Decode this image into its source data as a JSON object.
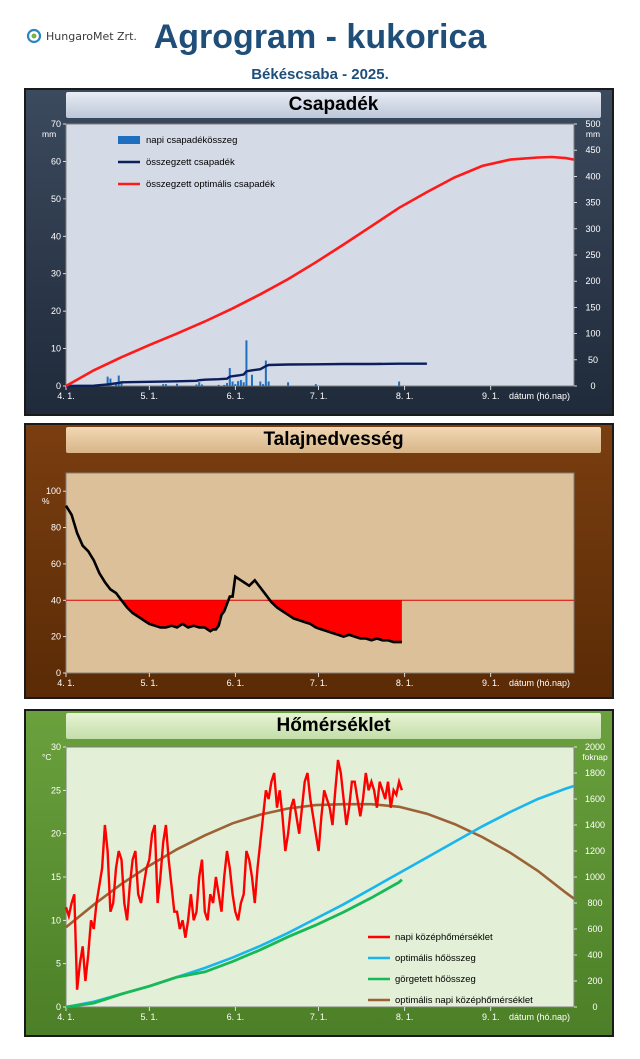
{
  "header": {
    "logo_text": "HungaroMet Zrt.",
    "title": "Agrogram - kukorica",
    "subtitle": "Békéscsaba - 2025."
  },
  "x_axis": {
    "tick_labels": [
      "4. 1.",
      "5. 1.",
      "6. 1.",
      "7. 1.",
      "8. 1.",
      "9. 1."
    ],
    "label": "dátum (hó.nap)"
  },
  "colors": {
    "precip_panel": "#2b3648",
    "soil_panel": "#6b3409",
    "temp_panel": "#5b8f30"
  },
  "chart_data": [
    {
      "type": "line",
      "title": "Csapadék",
      "xlabel": "dátum (hó.nap)",
      "x_tick_labels": [
        "4. 1.",
        "5. 1.",
        "6. 1.",
        "7. 1.",
        "8. 1.",
        "9. 1."
      ],
      "x_range_days": [
        0,
        183
      ],
      "y_left": {
        "unit": "mm",
        "lim": [
          0,
          70
        ],
        "ticks": [
          0,
          10,
          20,
          30,
          40,
          50,
          60,
          70
        ]
      },
      "y_right": {
        "unit": "mm",
        "lim": [
          0,
          500
        ],
        "ticks": [
          0,
          50,
          100,
          150,
          200,
          250,
          300,
          350,
          400,
          450,
          500
        ]
      },
      "legend": [
        "napi csapadékösszeg",
        "összegzett csapadék",
        "összegzett optimális csapadék"
      ],
      "series": [
        {
          "name": "napi csapadékösszeg",
          "axis": "left",
          "kind": "bar",
          "x": [
            7,
            9,
            15,
            16,
            18,
            19,
            20,
            35,
            36,
            40,
            47,
            48,
            49,
            55,
            57,
            58,
            59,
            60,
            61,
            62,
            63,
            64,
            65,
            67,
            70,
            71,
            72,
            73,
            80,
            90,
            120
          ],
          "values": [
            0.3,
            0.2,
            2.5,
            2.0,
            0.5,
            2.8,
            1.0,
            0.5,
            0.5,
            0.6,
            0.4,
            1.0,
            0.4,
            0.3,
            0.3,
            0.8,
            4.8,
            1.2,
            0.5,
            1.3,
            1.6,
            1.0,
            12.2,
            3.0,
            1.2,
            0.5,
            6.8,
            1.2,
            1.0,
            0.5,
            1.2
          ]
        },
        {
          "name": "összegzett csapadék",
          "axis": "right",
          "x": [
            0,
            10,
            15,
            19,
            20,
            30,
            40,
            47,
            48,
            50,
            55,
            58,
            59,
            62,
            64,
            65,
            67,
            70,
            72,
            73,
            80,
            90,
            100,
            110,
            120,
            130
          ],
          "values": [
            0,
            0.5,
            3,
            6,
            7,
            8,
            9,
            10,
            11,
            12,
            13,
            14,
            18,
            20,
            22,
            28,
            30,
            32,
            38,
            40,
            41,
            41.5,
            42,
            42,
            42.5,
            42.5
          ]
        },
        {
          "name": "összegzett optimális csapadék",
          "axis": "right",
          "x": [
            0,
            10,
            20,
            30,
            40,
            50,
            60,
            70,
            80,
            90,
            100,
            110,
            120,
            130,
            140,
            150,
            160,
            170,
            175,
            180,
            183
          ],
          "values": [
            0,
            30,
            55,
            78,
            100,
            123,
            148,
            175,
            204,
            236,
            270,
            305,
            340,
            370,
            398,
            420,
            432,
            436,
            437,
            435,
            432
          ]
        }
      ]
    },
    {
      "type": "area",
      "title": "Talajnedvesség",
      "xlabel": "dátum (hó.nap)",
      "x_tick_labels": [
        "4. 1.",
        "5. 1.",
        "6. 1.",
        "7. 1.",
        "8. 1.",
        "9. 1."
      ],
      "x_range_days": [
        0,
        183
      ],
      "y_left": {
        "unit": "%",
        "lim": [
          0,
          110
        ],
        "ticks": [
          0,
          20,
          40,
          60,
          80,
          100
        ]
      },
      "threshold": 40,
      "series": [
        {
          "name": "",
          "x": [
            0,
            2,
            4,
            6,
            8,
            10,
            12,
            14,
            16,
            18,
            20,
            22,
            24,
            26,
            28,
            30,
            32,
            34,
            36,
            38,
            40,
            42,
            44,
            46,
            48,
            50,
            51,
            52,
            53,
            54,
            55,
            56,
            57,
            58,
            59,
            60,
            61,
            62,
            63,
            64,
            65,
            66,
            68,
            70,
            72,
            74,
            76,
            78,
            80,
            82,
            84,
            86,
            88,
            90,
            92,
            94,
            96,
            98,
            100,
            102,
            104,
            106,
            108,
            110,
            112,
            114,
            116,
            118,
            120,
            121
          ],
          "values": [
            92,
            87,
            77,
            70,
            67,
            62,
            55,
            50,
            46,
            44,
            40,
            36,
            33,
            31,
            29,
            27,
            26,
            25,
            25,
            26,
            25,
            27,
            25,
            26,
            25,
            25,
            24,
            23,
            24,
            24,
            26,
            32,
            34,
            38,
            42,
            42,
            53,
            52,
            51,
            50,
            49,
            48,
            51,
            47,
            43,
            39,
            36,
            34,
            32,
            30,
            29,
            28,
            27,
            25,
            24,
            23,
            22,
            21,
            20,
            21,
            20,
            19,
            19,
            18,
            19,
            18,
            18,
            17,
            17,
            17
          ]
        }
      ]
    },
    {
      "type": "line",
      "title": "Hőmérséklet",
      "xlabel": "dátum (hó.nap)",
      "x_tick_labels": [
        "4. 1.",
        "5. 1.",
        "6. 1.",
        "7. 1.",
        "8. 1.",
        "9. 1."
      ],
      "x_range_days": [
        0,
        183
      ],
      "y_left": {
        "unit": "°C",
        "lim": [
          0,
          30
        ],
        "ticks": [
          0,
          5,
          10,
          15,
          20,
          25,
          30
        ]
      },
      "y_right": {
        "unit": "foknap",
        "lim": [
          0,
          2000
        ],
        "ticks": [
          0,
          200,
          400,
          600,
          800,
          1000,
          1200,
          1400,
          1600,
          1800,
          2000
        ]
      },
      "legend": [
        "napi középhőmérséklet",
        "optimális hőösszeg",
        "görgetett hőösszeg",
        "optimális napi középhőmérséklet"
      ],
      "series": [
        {
          "name": "napi középhőmérséklet",
          "axis": "left",
          "x": [
            0,
            1,
            2,
            3,
            4,
            5,
            6,
            7,
            8,
            9,
            10,
            11,
            12,
            13,
            14,
            15,
            16,
            17,
            18,
            19,
            20,
            21,
            22,
            23,
            24,
            25,
            26,
            27,
            28,
            29,
            30,
            31,
            32,
            33,
            34,
            35,
            36,
            37,
            38,
            39,
            40,
            41,
            42,
            43,
            44,
            45,
            46,
            47,
            48,
            49,
            50,
            51,
            52,
            53,
            54,
            55,
            56,
            57,
            58,
            59,
            60,
            61,
            62,
            63,
            64,
            65,
            66,
            67,
            68,
            69,
            70,
            71,
            72,
            73,
            74,
            75,
            76,
            77,
            78,
            79,
            80,
            81,
            82,
            83,
            84,
            85,
            86,
            87,
            88,
            89,
            90,
            91,
            92,
            93,
            94,
            95,
            96,
            97,
            98,
            99,
            100,
            101,
            102,
            103,
            104,
            105,
            106,
            107,
            108,
            109,
            110,
            111,
            112,
            113,
            114,
            115,
            116,
            117,
            118,
            119,
            120,
            121
          ],
          "values": [
            11.5,
            10.5,
            12,
            13,
            2,
            5,
            7,
            3,
            6,
            10,
            9,
            12,
            14,
            16,
            21,
            18,
            11,
            12,
            16,
            18,
            17,
            12,
            10,
            14,
            17,
            18,
            13,
            12,
            14,
            16,
            17,
            20,
            21,
            12,
            15,
            19,
            21,
            17,
            14,
            11,
            11,
            9,
            10,
            8,
            10,
            13,
            10,
            11,
            15,
            17,
            11,
            10,
            13,
            12,
            15,
            13,
            11,
            15,
            18,
            16,
            13,
            11,
            10,
            12,
            13,
            18,
            17,
            15,
            12,
            16,
            19,
            22,
            25,
            24,
            26,
            27,
            23,
            25,
            22,
            18,
            20,
            23,
            24,
            22,
            20,
            23,
            26,
            27,
            24,
            22,
            20,
            18,
            22,
            25,
            24,
            23,
            21,
            25,
            28.5,
            27,
            24,
            21,
            23,
            26,
            26,
            24,
            22,
            24,
            27,
            25,
            26,
            25,
            23,
            26,
            25,
            24,
            26,
            23,
            25,
            24.5,
            26,
            25
          ]
        },
        {
          "name": "optimális hőösszeg",
          "axis": "right",
          "x": [
            0,
            10,
            20,
            30,
            40,
            50,
            60,
            70,
            80,
            90,
            100,
            110,
            120,
            130,
            140,
            150,
            160,
            170,
            180,
            183
          ],
          "values": [
            0,
            40,
            100,
            160,
            230,
            300,
            380,
            470,
            570,
            680,
            790,
            910,
            1030,
            1150,
            1270,
            1390,
            1500,
            1600,
            1680,
            1700
          ]
        },
        {
          "name": "görgetett hőösszeg",
          "axis": "right",
          "x": [
            0,
            10,
            20,
            30,
            40,
            50,
            60,
            70,
            80,
            90,
            100,
            110,
            120,
            121
          ],
          "values": [
            0,
            30,
            100,
            160,
            230,
            270,
            350,
            440,
            540,
            630,
            730,
            840,
            960,
            980
          ]
        },
        {
          "name": "optimális napi középhőmérséklet",
          "axis": "left",
          "x": [
            0,
            10,
            20,
            30,
            40,
            50,
            60,
            70,
            80,
            90,
            100,
            110,
            120,
            130,
            140,
            150,
            160,
            170,
            180,
            183
          ],
          "values": [
            9.2,
            11.8,
            14.2,
            16.3,
            18.2,
            19.8,
            21.2,
            22.2,
            22.9,
            23.3,
            23.4,
            23.4,
            23.1,
            22.3,
            21.1,
            19.6,
            17.8,
            15.7,
            13.2,
            12.5
          ]
        }
      ]
    }
  ]
}
